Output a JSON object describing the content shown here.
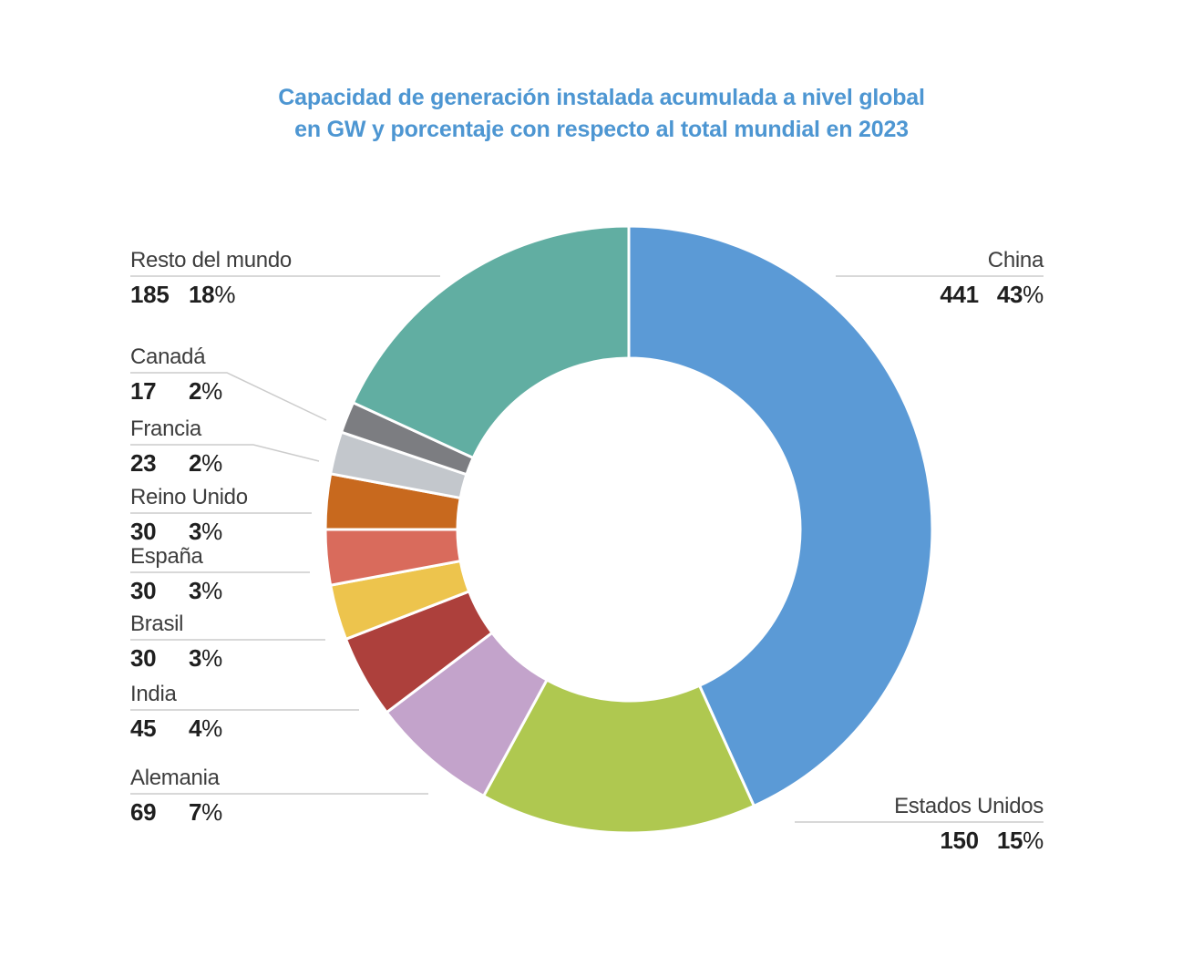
{
  "title": {
    "line1": "Capacidad de generación instalada acumulada a nivel global",
    "line2": "en GW y porcentaje con respecto al total mundial en 2023",
    "color": "#4D96D2"
  },
  "chart_data": {
    "type": "pie",
    "subtype": "donut",
    "title": "Capacidad de generación instalada acumulada a nivel global en GW y porcentaje con respecto al total mundial en 2023",
    "unit": "GW",
    "start_angle_deg": 0,
    "direction": "clockwise",
    "donut_hole_ratio": 0.565,
    "legend_position": "callout-labels",
    "separator_color": "#FFFFFF",
    "leader_line_color": "#CCCCCC",
    "pct_symbol": "%",
    "segments": [
      {
        "label": "China",
        "value_gw": 441,
        "pct": "43",
        "color": "#5B9AD6"
      },
      {
        "label": "Estados Unidos",
        "value_gw": 150,
        "pct": "15",
        "color": "#AFC850"
      },
      {
        "label": "Alemania",
        "value_gw": 69,
        "pct": "7",
        "color": "#C3A3CB"
      },
      {
        "label": "India",
        "value_gw": 45,
        "pct": "4",
        "color": "#AD403C"
      },
      {
        "label": "Brasil",
        "value_gw": 30,
        "pct": "3",
        "color": "#EDC44D"
      },
      {
        "label": "España",
        "value_gw": 30,
        "pct": "3",
        "color": "#D96B5C"
      },
      {
        "label": "Reino Unido",
        "value_gw": 30,
        "pct": "3",
        "color": "#C8691E"
      },
      {
        "label": "Francia",
        "value_gw": 23,
        "pct": "2",
        "color": "#C3C7CC"
      },
      {
        "label": "Canadá",
        "value_gw": 17,
        "pct": "2",
        "color": "#7C7D81"
      },
      {
        "label": "Resto del mundo",
        "value_gw": 185,
        "pct": "18",
        "color": "#61AEA2"
      }
    ]
  }
}
